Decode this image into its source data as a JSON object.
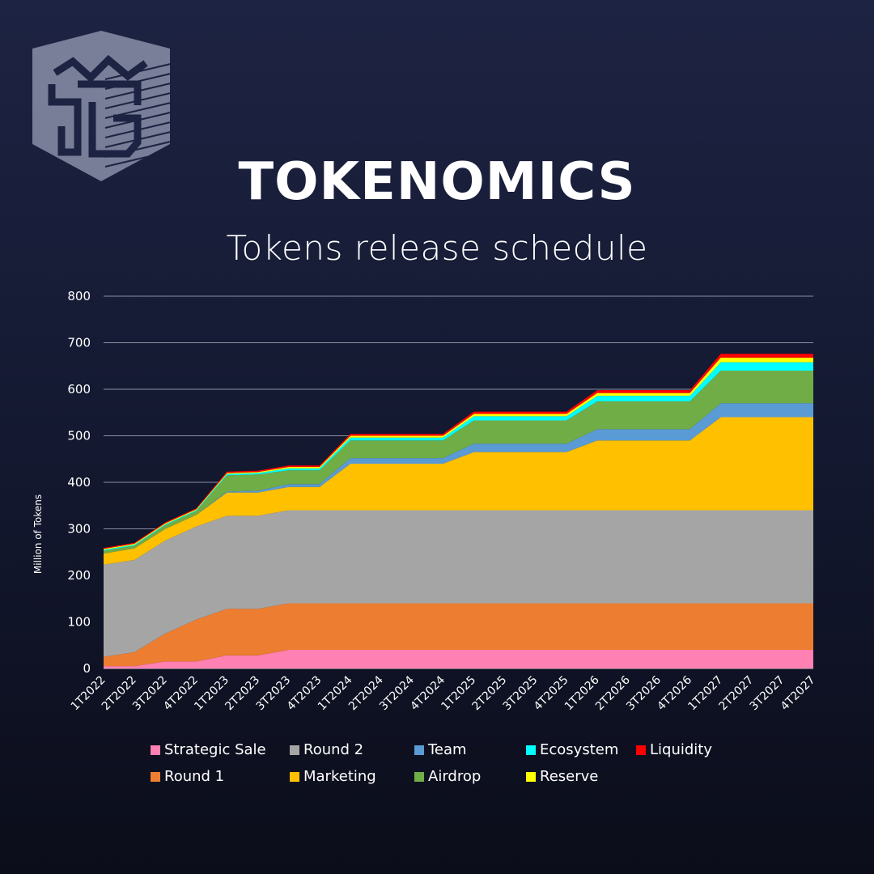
{
  "header": {
    "title": "TOKENOMICS",
    "subtitle": "Tokens release schedule"
  },
  "logo": {
    "icon": "shield-crown-logo"
  },
  "chart_data": {
    "type": "area",
    "stacked": true,
    "ylabel": "Million of Tokens",
    "xlabel": "",
    "ylim": [
      0,
      800
    ],
    "yticks": [
      0,
      100,
      200,
      300,
      400,
      500,
      600,
      700,
      800
    ],
    "grid": true,
    "legend_position": "bottom",
    "categories": [
      "1T2022",
      "2T2022",
      "3T2022",
      "4T2022",
      "1T2023",
      "2T2023",
      "3T2023",
      "4T2023",
      "1T2024",
      "2T2024",
      "3T2024",
      "4T2024",
      "1T2025",
      "2T2025",
      "3T2025",
      "4T2025",
      "1T2026",
      "2T2026",
      "3T2026",
      "4T2026",
      "1T2027",
      "2T2027",
      "3T2027",
      "4T2027"
    ],
    "series": [
      {
        "name": "Strategic Sale",
        "color": "#ff80b2",
        "values": [
          5,
          5,
          15,
          15,
          28,
          28,
          40,
          40,
          40,
          40,
          40,
          40,
          40,
          40,
          40,
          40,
          40,
          40,
          40,
          40,
          40,
          40,
          40,
          40
        ]
      },
      {
        "name": "Round 1",
        "color": "#ed7d31",
        "values": [
          20,
          30,
          60,
          90,
          100,
          100,
          100,
          100,
          100,
          100,
          100,
          100,
          100,
          100,
          100,
          100,
          100,
          100,
          100,
          100,
          100,
          100,
          100,
          100
        ]
      },
      {
        "name": "Round 2",
        "color": "#a5a5a5",
        "values": [
          198,
          198,
          200,
          200,
          200,
          200,
          200,
          200,
          200,
          200,
          200,
          200,
          200,
          200,
          200,
          200,
          200,
          200,
          200,
          200,
          200,
          200,
          200,
          200
        ]
      },
      {
        "name": "Marketing",
        "color": "#ffc000",
        "values": [
          24,
          25,
          25,
          25,
          50,
          50,
          50,
          50,
          100,
          100,
          100,
          100,
          125,
          125,
          125,
          125,
          150,
          150,
          150,
          150,
          200,
          200,
          200,
          200
        ]
      },
      {
        "name": "Team",
        "color": "#5b9bd5",
        "values": [
          0,
          0,
          0,
          0,
          2,
          4,
          6,
          6,
          12,
          12,
          12,
          12,
          18,
          18,
          18,
          18,
          24,
          24,
          24,
          24,
          30,
          30,
          30,
          30
        ]
      },
      {
        "name": "Airdrop",
        "color": "#70ad47",
        "values": [
          6,
          6,
          8,
          8,
          35,
          35,
          30,
          30,
          38,
          38,
          38,
          38,
          50,
          50,
          50,
          50,
          60,
          60,
          60,
          60,
          70,
          70,
          70,
          70
        ]
      },
      {
        "name": "Ecosystem",
        "color": "#00ffff",
        "values": [
          2,
          2,
          2,
          2,
          3,
          3,
          4,
          4,
          6,
          6,
          6,
          6,
          9,
          9,
          9,
          9,
          12,
          12,
          12,
          12,
          18,
          18,
          18,
          18
        ]
      },
      {
        "name": "Reserve",
        "color": "#ffff00",
        "values": [
          2,
          2,
          2,
          2,
          2,
          2,
          3,
          3,
          4,
          4,
          4,
          4,
          5,
          5,
          5,
          5,
          6,
          6,
          6,
          6,
          10,
          10,
          10,
          10
        ]
      },
      {
        "name": "Liquidity",
        "color": "#ff0000",
        "values": [
          2,
          2,
          2,
          2,
          3,
          3,
          3,
          3,
          4,
          4,
          4,
          4,
          5,
          5,
          5,
          5,
          6,
          6,
          6,
          6,
          8,
          8,
          8,
          8
        ]
      }
    ],
    "legend_order": [
      "Strategic Sale",
      "Round 2",
      "Team",
      "Ecosystem",
      "Liquidity",
      "Round 1",
      "Marketing",
      "Airdrop",
      "Reserve"
    ]
  }
}
